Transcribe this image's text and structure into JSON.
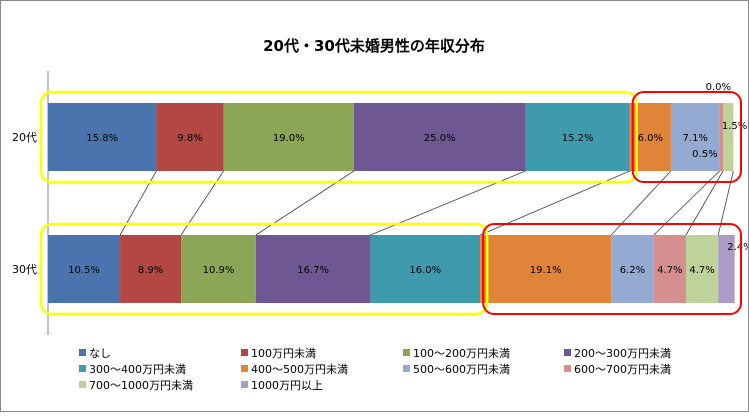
{
  "chart_data": {
    "type": "bar",
    "orientation": "horizontal-stacked-100",
    "title": "20代・30代未婚男性の年収分布",
    "categories": [
      "20代",
      "30代"
    ],
    "series": [
      {
        "name": "なし",
        "color": "#4a74ad",
        "values": [
          15.8,
          10.5
        ]
      },
      {
        "name": "100万円未満",
        "color": "#b24743",
        "values": [
          9.8,
          8.9
        ]
      },
      {
        "name": "100～200万円未満",
        "color": "#8ba656",
        "values": [
          19.0,
          10.9
        ]
      },
      {
        "name": "200～300万円未満",
        "color": "#6f5793",
        "values": [
          25.0,
          16.7
        ]
      },
      {
        "name": "300～400万円未満",
        "color": "#3d9bad",
        "values": [
          15.2,
          16.0
        ]
      },
      {
        "name": "400～500万円未満",
        "color": "#e0843a",
        "values": [
          6.0,
          19.1
        ]
      },
      {
        "name": "500～600万円未満",
        "color": "#94aad2",
        "values": [
          7.1,
          6.2
        ]
      },
      {
        "name": "600～700万円未満",
        "color": "#d48f8e",
        "values": [
          0.5,
          4.7
        ]
      },
      {
        "name": "700～1000万円未満",
        "color": "#bdd39a",
        "values": [
          1.5,
          4.7
        ]
      },
      {
        "name": "1000万円以上",
        "color": "#aa9cc4",
        "values": [
          0.0,
          2.4
        ]
      }
    ],
    "data_labels": [
      [
        "15.8%",
        "9.8%",
        "19.0%",
        "25.0%",
        "15.2%",
        "6.0%",
        "7.1%",
        "0.5%",
        "1.5%",
        "0.0%"
      ],
      [
        "10.5%",
        "8.9%",
        "10.9%",
        "16.7%",
        "16.0%",
        "19.1%",
        "6.2%",
        "4.7%",
        "4.7%",
        "2.4%"
      ]
    ],
    "xlim": [
      0,
      100
    ],
    "legend_position": "bottom",
    "grid": false,
    "annotations": {
      "yellow_box_groups": [
        "なし〜300～400万円未満"
      ],
      "red_box_groups": [
        "400～500万円未満〜1000万円以上"
      ],
      "yellow_color": "#ffff00",
      "red_color": "#ff0000"
    }
  }
}
